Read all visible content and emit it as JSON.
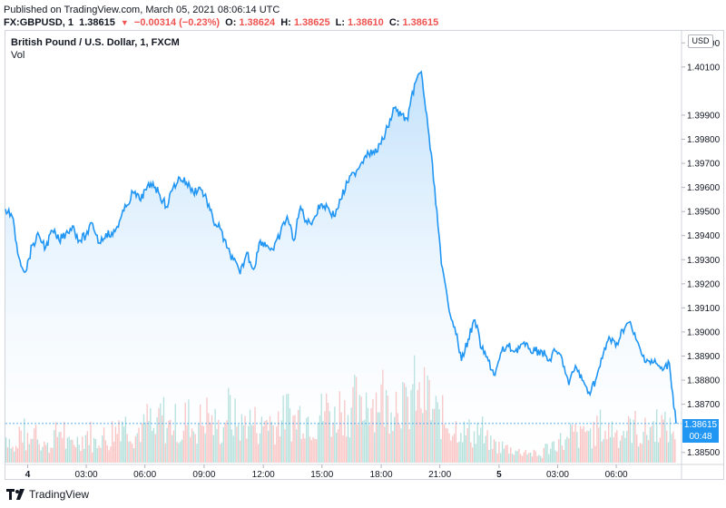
{
  "published": "Published on TradingView.com, March 05, 2021 08:06:14 UTC",
  "quote": {
    "symbol": "FX:GBPUSD, 1",
    "last": "1.38615",
    "change": "−0.00314 (−0.23%)",
    "open_label": "O:",
    "open": "1.38624",
    "high_label": "H:",
    "high": "1.38625",
    "low_label": "L:",
    "low": "1.38610",
    "close_label": "C:",
    "close": "1.38615"
  },
  "legend": {
    "title": "British Pound / U.S. Dollar, 1, FXCM",
    "vol": "Vol"
  },
  "currency_button": "USD",
  "price_tag": {
    "price": "1.38615",
    "countdown": "00:48"
  },
  "brand": "TradingView",
  "colors": {
    "line": "#2196f3",
    "fill_top": "#bbdefb",
    "vol_up": "#26a69a",
    "vol_down": "#ef5350",
    "tag": "#2196f3"
  },
  "chart_data": {
    "type": "area",
    "ylim": [
      1.3845,
      1.4025
    ],
    "yticks": [
      "1.40200",
      "1.40100",
      "1.39900",
      "1.39800",
      "1.39700",
      "1.39600",
      "1.39500",
      "1.39400",
      "1.39300",
      "1.39200",
      "1.39100",
      "1.39000",
      "1.38900",
      "1.38800",
      "1.38700",
      "1.38500"
    ],
    "ytick_values": [
      1.402,
      1.401,
      1.399,
      1.398,
      1.397,
      1.396,
      1.395,
      1.394,
      1.393,
      1.392,
      1.391,
      1.39,
      1.389,
      1.388,
      1.387,
      1.385
    ],
    "xticks": [
      {
        "label": "4",
        "bold": true,
        "pos": 0.036
      },
      {
        "label": "03:00",
        "bold": false,
        "pos": 0.131
      },
      {
        "label": "06:00",
        "bold": false,
        "pos": 0.226
      },
      {
        "label": "09:00",
        "bold": false,
        "pos": 0.322
      },
      {
        "label": "12:00",
        "bold": false,
        "pos": 0.418
      },
      {
        "label": "15:00",
        "bold": false,
        "pos": 0.513
      },
      {
        "label": "18:00",
        "bold": false,
        "pos": 0.609
      },
      {
        "label": "21:00",
        "bold": false,
        "pos": 0.704
      },
      {
        "label": "5",
        "bold": true,
        "pos": 0.8
      },
      {
        "label": "03:00",
        "bold": false,
        "pos": 0.895
      },
      {
        "label": "06:00",
        "bold": false,
        "pos": 0.99
      }
    ],
    "series": [
      {
        "x": [
          0.0,
          0.01,
          0.02,
          0.03,
          0.04,
          0.05,
          0.06,
          0.07,
          0.08,
          0.09,
          0.1,
          0.11,
          0.12,
          0.13,
          0.14,
          0.15,
          0.16,
          0.17,
          0.18,
          0.19,
          0.2,
          0.21,
          0.22,
          0.23,
          0.24,
          0.25,
          0.26,
          0.27,
          0.28,
          0.29,
          0.3,
          0.31,
          0.32,
          0.33,
          0.34,
          0.35,
          0.36,
          0.37,
          0.38,
          0.39,
          0.4,
          0.41,
          0.42,
          0.43,
          0.44,
          0.45,
          0.46,
          0.47,
          0.48,
          0.49,
          0.5,
          0.51,
          0.52,
          0.53,
          0.54,
          0.55,
          0.56,
          0.57,
          0.58,
          0.59,
          0.6,
          0.61,
          0.62,
          0.63,
          0.64,
          0.65,
          0.66,
          0.67,
          0.68,
          0.69,
          0.7,
          0.71,
          0.72,
          0.73,
          0.74,
          0.75,
          0.76,
          0.77,
          0.78,
          0.79,
          0.8,
          0.81,
          0.82,
          0.83,
          0.84,
          0.85,
          0.86,
          0.87,
          0.88,
          0.89,
          0.9,
          0.91,
          0.92,
          0.93,
          0.94,
          0.95,
          0.96,
          0.97,
          0.98,
          0.99,
          1.0
        ],
        "values": [
          1.3951,
          1.3948,
          1.3931,
          1.3925,
          1.3936,
          1.394,
          1.3935,
          1.3942,
          1.3938,
          1.3941,
          1.3944,
          1.3938,
          1.394,
          1.3945,
          1.3937,
          1.3941,
          1.394,
          1.3946,
          1.3952,
          1.3958,
          1.3955,
          1.3959,
          1.3962,
          1.3957,
          1.3952,
          1.396,
          1.3964,
          1.3962,
          1.3958,
          1.396,
          1.3955,
          1.3946,
          1.3943,
          1.3935,
          1.393,
          1.3924,
          1.3933,
          1.3926,
          1.3938,
          1.3936,
          1.3934,
          1.3941,
          1.3948,
          1.3938,
          1.3952,
          1.3945,
          1.3947,
          1.3953,
          1.3952,
          1.3948,
          1.3955,
          1.3962,
          1.3966,
          1.397,
          1.3975,
          1.3974,
          1.3978,
          1.3985,
          1.3993,
          1.399,
          1.3988,
          1.4003,
          1.4008,
          1.3985,
          1.396,
          1.3928,
          1.3912,
          1.3902,
          1.3888,
          1.3897,
          1.3905,
          1.3893,
          1.3888,
          1.3882,
          1.3892,
          1.3894,
          1.3892,
          1.3895,
          1.3893,
          1.3892,
          1.3892,
          1.3888,
          1.3892,
          1.3889,
          1.3878,
          1.3886,
          1.388,
          1.3875,
          1.388,
          1.3889,
          1.3898,
          1.3894,
          1.3901,
          1.3904,
          1.3897,
          1.389,
          1.3888,
          1.3887,
          1.3884,
          1.3887,
          1.3862
        ]
      }
    ],
    "volume": {
      "note": "relative bar heights 0-1, alternating up/down",
      "values": [
        0.35,
        0.2,
        0.42,
        0.28,
        0.5,
        0.3,
        0.22,
        0.38,
        0.45,
        0.25,
        0.3,
        0.33,
        0.4,
        0.28,
        0.36,
        0.31,
        0.44,
        0.6,
        0.52,
        0.39,
        0.47,
        0.58,
        0.42,
        0.65,
        0.5,
        0.55,
        0.4,
        0.62,
        0.48,
        0.57,
        0.66,
        0.53,
        0.45,
        0.72,
        0.6,
        0.5,
        0.58,
        0.55,
        0.48,
        0.6,
        0.52,
        0.63,
        0.7,
        0.58,
        0.66,
        0.62,
        0.55,
        0.68,
        0.74,
        0.6,
        0.78,
        0.7,
        0.82,
        0.66,
        0.9,
        0.86,
        0.95,
        0.8,
        0.88,
        0.92,
        0.75,
        1.0,
        0.85,
        0.9,
        0.7,
        0.62,
        0.55,
        0.48,
        0.5,
        0.42,
        0.38,
        0.45,
        0.3,
        0.25,
        0.22,
        0.2,
        0.18,
        0.15,
        0.16,
        0.12,
        0.1,
        0.2,
        0.25,
        0.3,
        0.28,
        0.4,
        0.35,
        0.45,
        0.38,
        0.5,
        0.42,
        0.48,
        0.4,
        0.45,
        0.5,
        0.38,
        0.42,
        0.5,
        0.55,
        0.48,
        0.45
      ]
    }
  }
}
